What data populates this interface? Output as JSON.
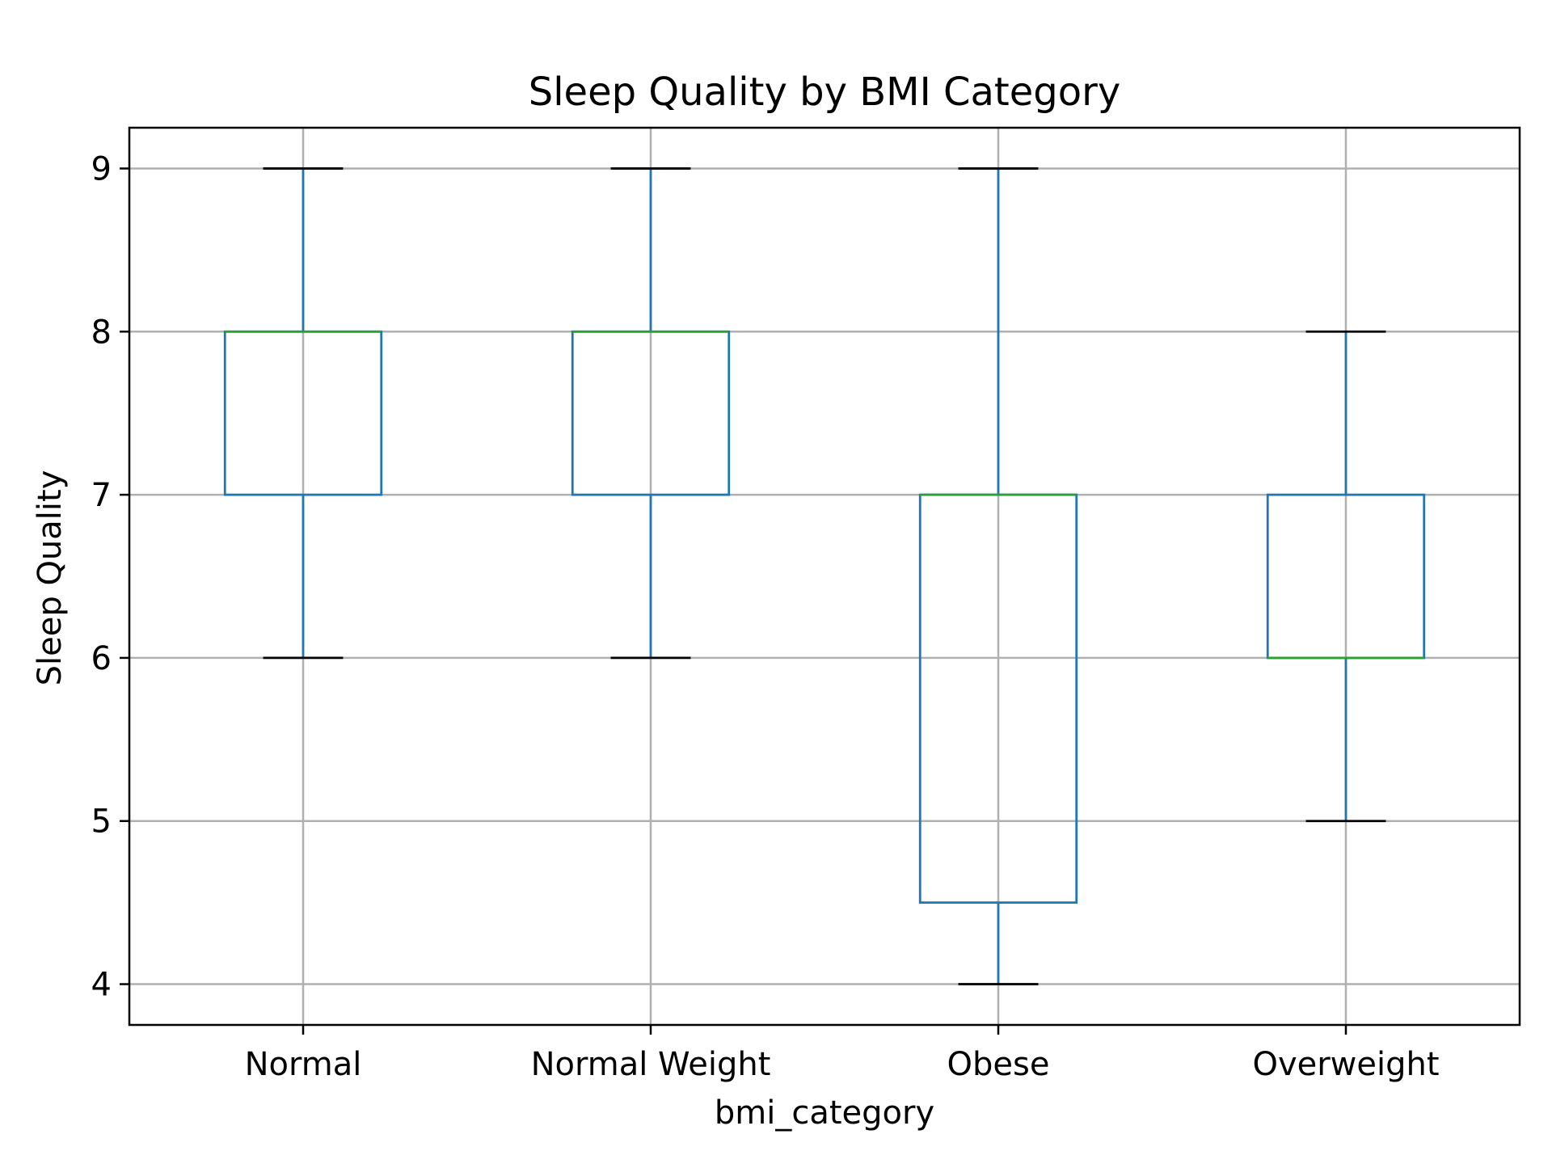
{
  "chart_data": {
    "type": "box",
    "title": "Sleep Quality by BMI Category",
    "xlabel": "bmi_category",
    "ylabel": "Sleep Quality",
    "ylim": [
      3.75,
      9.25
    ],
    "yticks": [
      4,
      5,
      6,
      7,
      8,
      9
    ],
    "grid": true,
    "categories": [
      "Normal",
      "Normal Weight",
      "Obese",
      "Overweight"
    ],
    "boxes": [
      {
        "category": "Normal",
        "whisker_low": 6,
        "q1": 7,
        "median": 8,
        "q3": 8,
        "whisker_high": 9
      },
      {
        "category": "Normal Weight",
        "whisker_low": 6,
        "q1": 7,
        "median": 8,
        "q3": 8,
        "whisker_high": 9
      },
      {
        "category": "Obese",
        "whisker_low": 4,
        "q1": 4.5,
        "median": 7,
        "q3": 7,
        "whisker_high": 9
      },
      {
        "category": "Overweight",
        "whisker_low": 5,
        "q1": 6,
        "median": 6,
        "q3": 7,
        "whisker_high": 8
      }
    ],
    "colors": {
      "box": "#1f77b4",
      "median": "#2ca02c",
      "cap": "#000000",
      "grid": "#b0b0b0",
      "axes": "#000000"
    }
  }
}
